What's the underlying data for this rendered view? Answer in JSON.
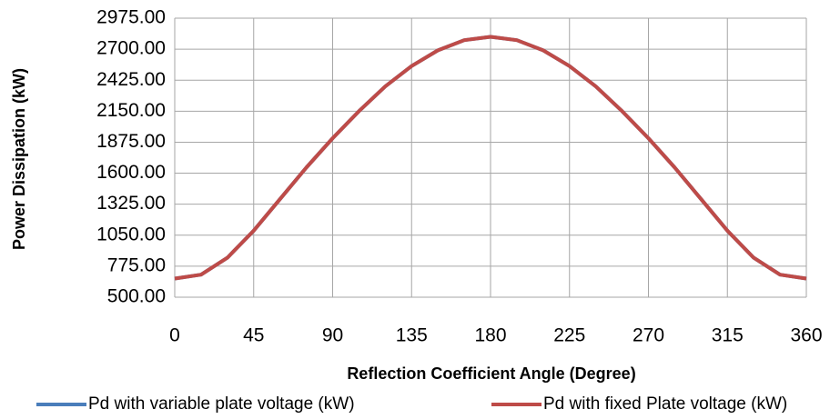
{
  "chart_data": {
    "type": "line",
    "x_label": "Reflection Coefficient Angle (Degree)",
    "y_label": "Power Dissipation (kW)",
    "x": [
      0,
      15,
      30,
      45,
      60,
      75,
      90,
      105,
      120,
      135,
      150,
      165,
      180,
      195,
      210,
      225,
      240,
      255,
      270,
      285,
      300,
      315,
      330,
      345,
      360
    ],
    "series": [
      {
        "name": "Pd with variable plate voltage (kW)",
        "color": "#4a7ebb",
        "values": [
          665,
          700,
          850,
          1090,
          1370,
          1650,
          1910,
          2150,
          2370,
          2550,
          2690,
          2780,
          2810,
          2780,
          2690,
          2550,
          2370,
          2150,
          1910,
          1650,
          1370,
          1090,
          850,
          700,
          665
        ]
      },
      {
        "name": "Pd with fixed Plate voltage (kW)",
        "color": "#be4b48",
        "values": [
          665,
          700,
          850,
          1090,
          1370,
          1650,
          1910,
          2150,
          2370,
          2550,
          2690,
          2780,
          2810,
          2780,
          2690,
          2550,
          2370,
          2150,
          1910,
          1650,
          1370,
          1090,
          850,
          700,
          665
        ]
      }
    ],
    "xlim": [
      0,
      360
    ],
    "xticks": [
      0,
      45,
      90,
      135,
      180,
      225,
      270,
      315,
      360
    ],
    "ylim": [
      500,
      2975
    ],
    "yticks": [
      {
        "value": 500,
        "label": "500.00"
      },
      {
        "value": 775,
        "label": "775.00"
      },
      {
        "value": 1050,
        "label": "1050.00"
      },
      {
        "value": 1325,
        "label": "1325.00"
      },
      {
        "value": 1600,
        "label": "1600.00"
      },
      {
        "value": 1875,
        "label": "1875.00"
      },
      {
        "value": 2150,
        "label": "2150.00"
      },
      {
        "value": 2425,
        "label": "2425.00"
      },
      {
        "value": 2700,
        "label": "2700.00"
      },
      {
        "value": 2975,
        "label": "2975.00"
      }
    ],
    "grid": true,
    "legend": "bottom"
  }
}
